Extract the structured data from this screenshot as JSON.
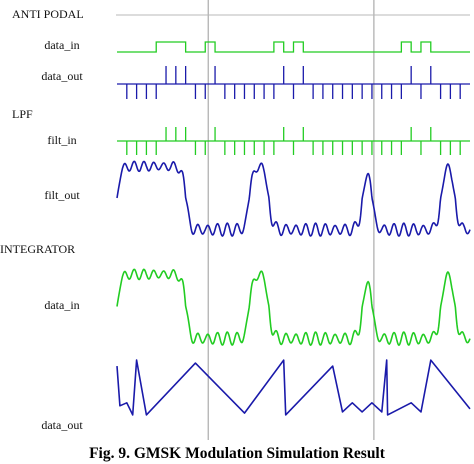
{
  "chart_data": {
    "type": "line",
    "caption": "Fig. 9. GMSK Modulation Simulation Result",
    "groups": [
      {
        "name": "ANTI PODAL",
        "signals": [
          "data_in",
          "data_out"
        ]
      },
      {
        "name": "LPF",
        "signals": [
          "filt_in",
          "filt_out"
        ]
      },
      {
        "name": "INTEGRATOR",
        "signals": [
          "data_in",
          "data_out"
        ]
      }
    ],
    "x": {
      "min": 0,
      "max": 36,
      "unit": "bit period"
    },
    "bits": [
      0,
      0,
      0,
      0,
      1,
      1,
      1,
      0,
      0,
      1,
      0,
      0,
      0,
      0,
      0,
      0,
      1,
      0,
      1,
      0,
      0,
      0,
      0,
      0,
      0,
      0,
      0,
      0,
      0,
      1,
      0,
      1,
      0,
      0,
      0,
      0
    ],
    "series": [
      {
        "name": "data_in",
        "group": "ANTI PODAL",
        "kind": "digital",
        "color": "#22cc22",
        "pulses": [
          [
            4,
            7
          ],
          [
            9,
            10
          ],
          [
            16,
            17
          ],
          [
            18,
            19
          ],
          [
            29,
            30
          ],
          [
            31,
            32
          ]
        ]
      },
      {
        "name": "data_out",
        "group": "ANTI PODAL",
        "kind": "impulse",
        "color": "#1a1aaa",
        "up": [
          5,
          6,
          7,
          10,
          17,
          19,
          30,
          32
        ],
        "down": [
          1,
          2,
          3,
          4,
          8,
          9,
          11,
          12,
          13,
          14,
          15,
          16,
          18,
          20,
          21,
          22,
          23,
          24,
          25,
          26,
          27,
          28,
          29,
          31,
          33,
          34,
          35
        ]
      },
      {
        "name": "filt_in",
        "group": "LPF",
        "kind": "impulse",
        "color": "#22cc22",
        "up": [
          5,
          6,
          7,
          10,
          17,
          19,
          30,
          32
        ],
        "down": [
          1,
          2,
          3,
          4,
          8,
          9,
          11,
          12,
          13,
          14,
          15,
          16,
          18,
          20,
          21,
          22,
          23,
          24,
          25,
          26,
          27,
          28,
          29,
          31,
          33,
          34,
          35
        ]
      },
      {
        "name": "filt_out",
        "group": "LPF",
        "kind": "smooth",
        "color": "#1a1aaa",
        "peaks": [
          [
            0,
            7
          ],
          [
            13.5,
            15.5
          ],
          [
            25,
            26
          ],
          [
            33,
            34.5
          ]
        ],
        "ripple": true
      },
      {
        "name": "data_in",
        "group": "INTEGRATOR",
        "kind": "smooth",
        "color": "#22cc22",
        "peaks": [
          [
            0,
            7
          ],
          [
            13.5,
            15.5
          ],
          [
            25,
            26
          ],
          [
            33,
            34.5
          ]
        ],
        "ripple": true
      },
      {
        "name": "data_out",
        "group": "INTEGRATOR",
        "kind": "sawtooth",
        "color": "#1a1aaa",
        "points": [
          [
            0,
            0.85
          ],
          [
            0.3,
            0.2
          ],
          [
            1,
            0.25
          ],
          [
            1.6,
            0.05
          ],
          [
            2,
            0.95
          ],
          [
            3,
            0.05
          ],
          [
            8,
            0.9
          ],
          [
            13,
            0.08
          ],
          [
            17,
            0.95
          ],
          [
            17.2,
            0.05
          ],
          [
            22,
            0.85
          ],
          [
            23,
            0.1
          ],
          [
            24,
            0.25
          ],
          [
            25,
            0.1
          ],
          [
            26,
            0.25
          ],
          [
            27,
            0.1
          ],
          [
            27.5,
            0.95
          ],
          [
            27.6,
            0.05
          ],
          [
            30,
            0.25
          ],
          [
            31,
            0.1
          ],
          [
            32,
            0.95
          ],
          [
            36,
            0.15
          ]
        ]
      }
    ],
    "markers_x": [
      9.3,
      26.2
    ],
    "xlabel": "",
    "ylabel": "",
    "grid": "vertical markers",
    "legend": "none"
  }
}
